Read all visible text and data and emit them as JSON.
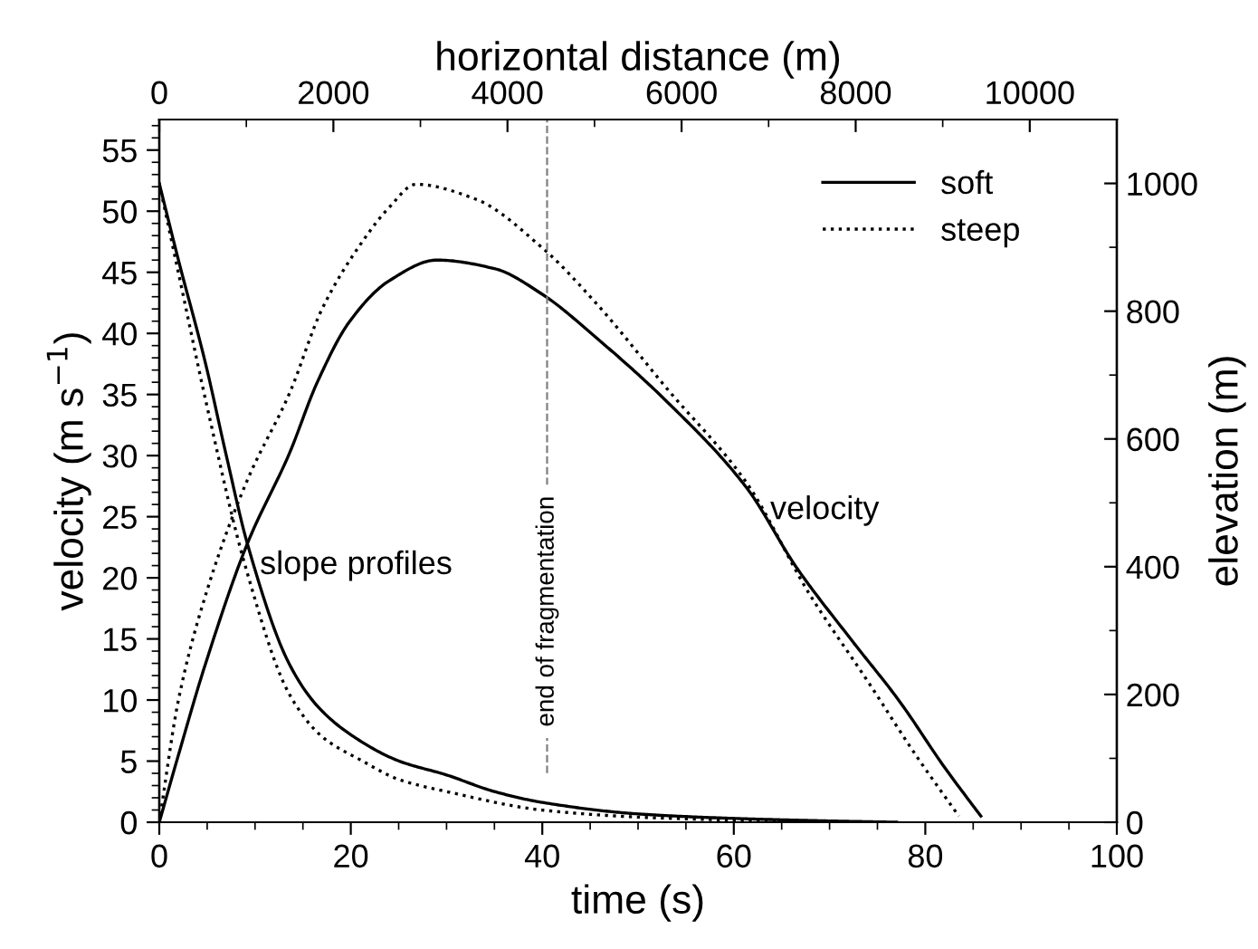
{
  "chart_data": {
    "type": "line",
    "xlabel": "time (s)",
    "ylabel": "velocity (m s$^{−1}$)",
    "y2label": "elevation (m)",
    "x2label": "horizontal distance (m)",
    "xlim": [
      0,
      100
    ],
    "xticks": [
      0,
      20,
      40,
      60,
      80,
      100
    ],
    "ylim": [
      0,
      57.5
    ],
    "yticks": [
      0,
      5,
      10,
      15,
      20,
      25,
      30,
      35,
      40,
      45,
      50,
      55
    ],
    "x2lim": [
      0,
      11000
    ],
    "x2ticks": [
      0,
      2000,
      4000,
      6000,
      8000,
      10000
    ],
    "y2lim": [
      0,
      1100
    ],
    "y2ticks": [
      0,
      200,
      400,
      600,
      800,
      1000
    ],
    "grid": false,
    "legend": "top right",
    "marker": "none",
    "series": [
      {
        "name": "soft",
        "color": "#000000",
        "line_style": "solid",
        "x": [
          0,
          2,
          4.8,
          9.2,
          13.6,
          16.5,
          19.9,
          24,
          29,
          35,
          40,
          45.7,
          53.3,
          61.4,
          66.5,
          72.2,
          77.3,
          82,
          85.8
        ],
        "values": [
          0,
          5.5,
          12.9,
          22.8,
          30.2,
          36,
          41,
          44.3,
          46,
          45.3,
          43.2,
          39.6,
          34.2,
          27.3,
          20.9,
          15,
          9.9,
          4.5,
          0.5
        ]
      },
      {
        "name": "steep",
        "color": "#000000",
        "line_style": "dotted",
        "x": [
          0,
          2,
          5,
          9.2,
          13.6,
          17,
          21.2,
          24,
          26.8,
          33,
          40,
          45.7,
          53,
          61.4,
          67.8,
          74.1,
          79,
          83.5
        ],
        "values": [
          0,
          10,
          19,
          28,
          35.1,
          42,
          47.5,
          50.3,
          52.2,
          51,
          47,
          42.4,
          35.5,
          27.7,
          18.8,
          11.4,
          5.5,
          0.5
        ]
      },
      {
        "color": "#000000",
        "line_style": "solid",
        "axis": "y2",
        "x": [
          0,
          2,
          4.8,
          7,
          9.2,
          13.6,
          16.5,
          19.9,
          25,
          30,
          35,
          40,
          50,
          60,
          70,
          77
        ],
        "values": [
          1000,
          880,
          720,
          574,
          436,
          247,
          182,
          138,
          96,
          74,
          48,
          31,
          13,
          6,
          2,
          0
        ]
      },
      {
        "color": "#000000",
        "line_style": "dotted",
        "axis": "y2",
        "x": [
          0,
          2,
          5,
          9,
          13.6,
          17,
          21.2,
          25,
          30,
          40,
          50,
          60,
          65
        ],
        "values": [
          1000,
          860,
          650,
          400,
          200,
          134,
          96,
          67,
          48,
          19,
          8,
          3,
          0
        ]
      }
    ],
    "ref_lines": [
      {
        "axis": "x",
        "value": 40.5,
        "label": "end of fragmentation",
        "color": "#808080",
        "line_style": "dashed"
      }
    ],
    "annotations": [
      {
        "text": "slope profiles",
        "x": 10.5,
        "y": 21
      },
      {
        "text": "velocity",
        "x": 63.8,
        "y": 25.5
      }
    ]
  }
}
